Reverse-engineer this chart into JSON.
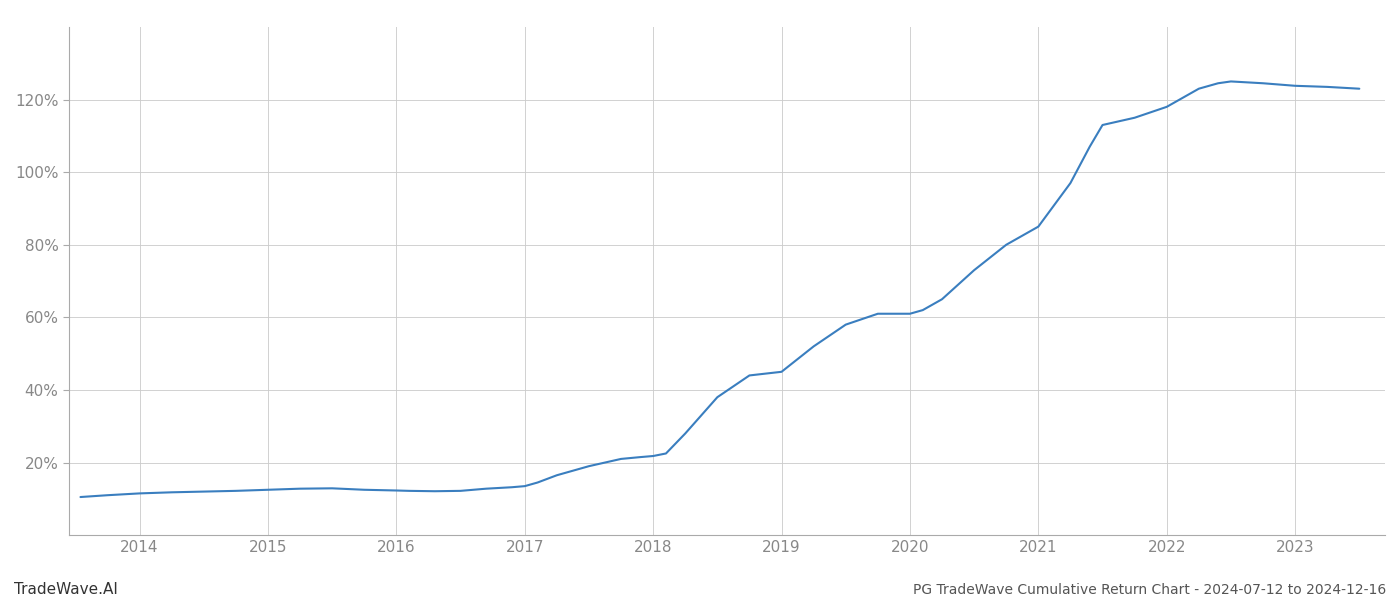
{
  "title": "PG TradeWave Cumulative Return Chart - 2024-07-12 to 2024-12-16",
  "watermark": "TradeWave.AI",
  "line_color": "#3a7ebf",
  "background_color": "#ffffff",
  "grid_color": "#cccccc",
  "x_years": [
    2014,
    2015,
    2016,
    2017,
    2018,
    2019,
    2020,
    2021,
    2022,
    2023
  ],
  "x_values": [
    2013.54,
    2013.75,
    2014.0,
    2014.25,
    2014.5,
    2014.75,
    2015.0,
    2015.25,
    2015.5,
    2015.75,
    2016.0,
    2016.1,
    2016.3,
    2016.5,
    2016.7,
    2016.9,
    2017.0,
    2017.1,
    2017.25,
    2017.5,
    2017.75,
    2017.9,
    2018.0,
    2018.1,
    2018.25,
    2018.5,
    2018.75,
    2019.0,
    2019.25,
    2019.5,
    2019.75,
    2020.0,
    2020.1,
    2020.25,
    2020.5,
    2020.75,
    2021.0,
    2021.25,
    2021.4,
    2021.5,
    2021.75,
    2022.0,
    2022.1,
    2022.25,
    2022.4,
    2022.5,
    2022.75,
    2023.0,
    2023.25,
    2023.5
  ],
  "y_values": [
    10.5,
    11.0,
    11.5,
    11.8,
    12.0,
    12.2,
    12.5,
    12.8,
    12.9,
    12.5,
    12.3,
    12.2,
    12.1,
    12.2,
    12.8,
    13.2,
    13.5,
    14.5,
    16.5,
    19.0,
    21.0,
    21.5,
    21.8,
    22.5,
    28.0,
    38.0,
    44.0,
    45.0,
    52.0,
    58.0,
    61.0,
    61.0,
    62.0,
    65.0,
    73.0,
    80.0,
    85.0,
    97.0,
    107.0,
    113.0,
    115.0,
    118.0,
    120.0,
    123.0,
    124.5,
    125.0,
    124.5,
    123.8,
    123.5,
    123.0
  ],
  "ylim": [
    0,
    140
  ],
  "yticks": [
    20,
    40,
    60,
    80,
    100,
    120
  ],
  "title_fontsize": 10,
  "tick_fontsize": 11,
  "watermark_fontsize": 11,
  "title_color": "#555555",
  "tick_color": "#888888",
  "watermark_color": "#333333"
}
